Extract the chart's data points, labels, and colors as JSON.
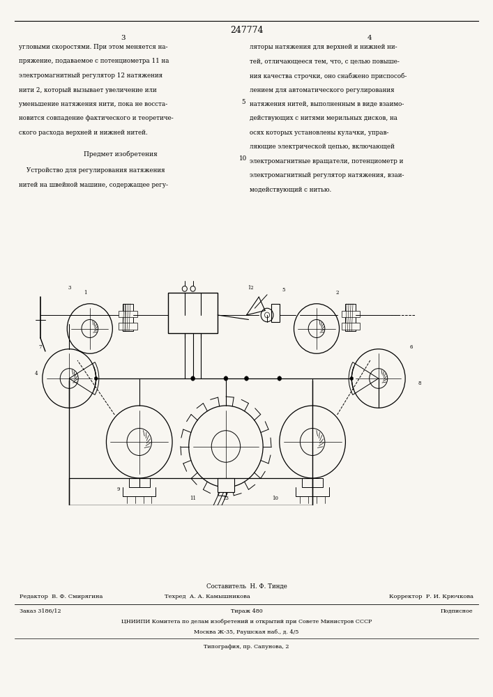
{
  "page_color": "#f8f6f1",
  "title_number": "247774",
  "col_left_header": "3",
  "col_right_header": "4",
  "text_left": [
    "угловыми скоростями. При этом меняется на-",
    "пряжение, подаваемое с потенциометра 11 на",
    "электромагнитный регулятор 12 натяжения",
    "нити 2, который вызывает увеличение или",
    "уменьшение натяжения нити, пока не восста-",
    "новится совпадение фактического и теоретиче-",
    "ского расхода верхней и нижней нитей."
  ],
  "text_subject_header": "Предмет изобретения",
  "text_subject": [
    "    Устройство для регулирования натяжения",
    "нитей на швейной машине, содержащее регу-"
  ],
  "text_right": [
    "ляторы натяжения для верхней и нижней ни-",
    "тей, отличающееся тем, что, с целью повыше-",
    "ния качества строчки, оно снабжено приспособ-",
    "лением для автоматического регулирования",
    "натяжения нитей, выполненным в виде взаимо-",
    "действующих с нитями мерильных дисков, на",
    "осях которых установлены кулачки, управ-",
    "ляющие электрической цепью, включающей",
    "электромагнитные вращатели, потенциометр и",
    "электромагнитный регулятор натяжения, взаи-",
    "модействующий с нитью."
  ],
  "footer_composer": "Составитель  Н. Ф. Тинде",
  "footer_editor": "Редактор  В. Ф. Смирягина",
  "footer_tech": "Техред  А. А. Камышникова",
  "footer_corrector": "Корректор  Р. И. Крючкова",
  "footer_order": "Заказ 3186/12",
  "footer_print": "Тираж 480",
  "footer_signed": "Подписное",
  "footer_org": "ЦНИИПИ Комитета по делам изобретений и открытий при Совете Министров СССР",
  "footer_address": "Москва Ж-35, Раушская наб., д. 4/5",
  "footer_print2": "Типография, пр. Сапунова, 2"
}
